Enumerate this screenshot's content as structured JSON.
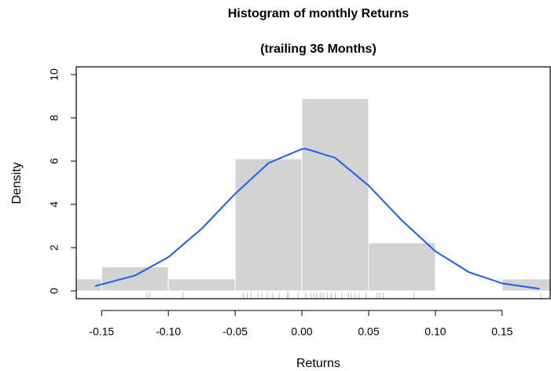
{
  "chart_data": {
    "type": "histogram",
    "title": "Histogram of monthly Returns",
    "subtitle": "(trailing 36 Months)",
    "x_label": "Returns",
    "y_label": "Density",
    "bins": [
      -0.2,
      -0.15,
      -0.1,
      -0.05,
      0,
      0.05,
      0.1,
      0.15,
      0.2
    ],
    "values": [
      0.556,
      1.111,
      0.556,
      6.111,
      8.889,
      2.222,
      0,
      0.556
    ],
    "color": "#d3d3d3",
    "curve": {
      "color": "#1a5ff0",
      "x": [
        -0.155,
        -0.125,
        -0.1,
        -0.075,
        -0.05,
        -0.025,
        0,
        0.003,
        0.025,
        0.05,
        0.075,
        0.1,
        0.125,
        0.15,
        0.178
      ],
      "y": [
        0.22,
        0.71,
        1.56,
        2.88,
        4.49,
        5.91,
        6.56,
        6.57,
        6.15,
        4.87,
        3.25,
        1.83,
        0.87,
        0.35,
        0.1
      ]
    },
    "rug": [
      -0.116,
      -0.114,
      -0.089,
      -0.044,
      -0.041,
      -0.038,
      -0.033,
      -0.03,
      -0.026,
      -0.022,
      -0.017,
      -0.011,
      -0.01,
      -0.003,
      0.003,
      0.007,
      0.009,
      0.011,
      0.014,
      0.016,
      0.019,
      0.022,
      0.025,
      0.03,
      0.035,
      0.037,
      0.04,
      0.043,
      0.048,
      0.056,
      0.058,
      0.061,
      0.084,
      0.179
    ],
    "rug_color": "#bdbdbd",
    "xlim": [
      -0.169,
      0.186
    ],
    "ylim": [
      -0.36,
      10.36
    ],
    "xticks": [
      {
        "value": -0.15,
        "label": "-0.15"
      },
      {
        "value": -0.1,
        "label": "-0.10"
      },
      {
        "value": -0.05,
        "label": "-0.05"
      },
      {
        "value": 0,
        "label": "0.00"
      },
      {
        "value": 0.05,
        "label": "0.05"
      },
      {
        "value": 0.1,
        "label": "0.10"
      },
      {
        "value": 0.15,
        "label": "0.15"
      }
    ],
    "yticks": [
      0,
      2,
      4,
      6,
      8,
      10
    ]
  }
}
